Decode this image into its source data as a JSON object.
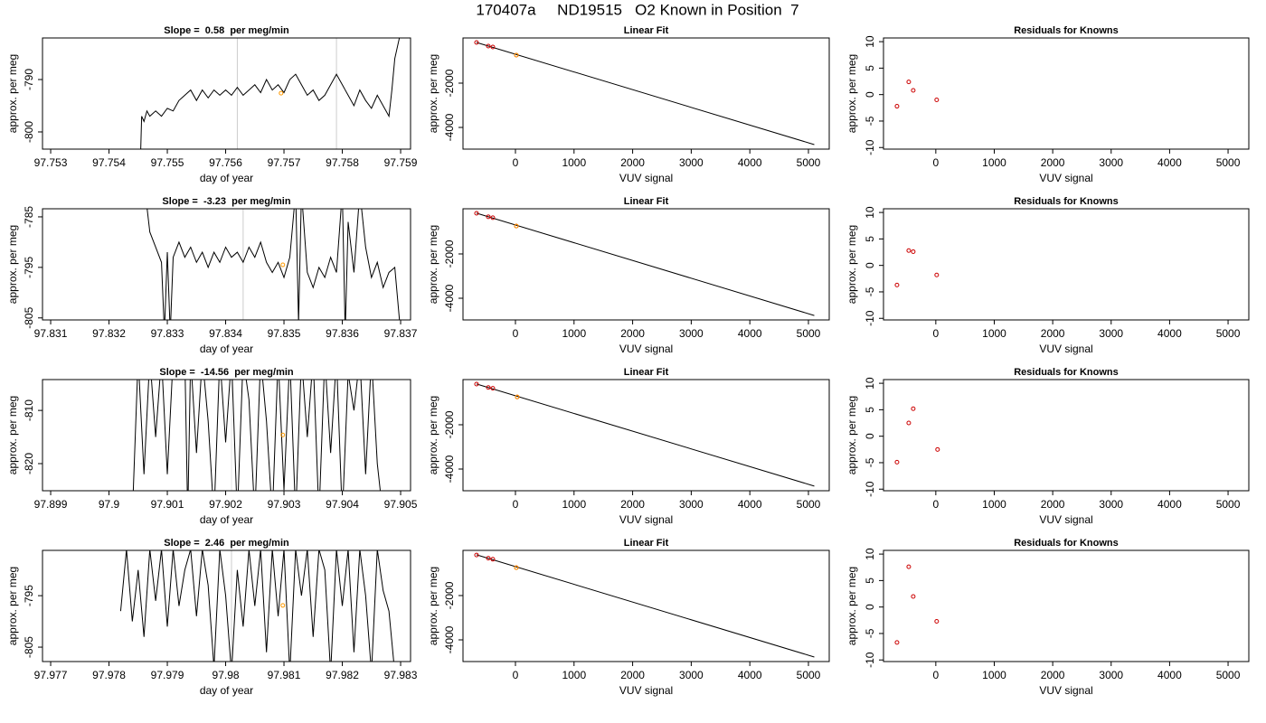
{
  "title": "170407a     ND19515   O2 Known in Position  7",
  "chart_data": [
    {
      "type": "line",
      "title": "Slope =  0.58  per meg/min",
      "x_label": "day of year",
      "y_label": "approx. per meg",
      "xlim": [
        97.75286,
        97.75917
      ],
      "ylim": [
        -803.28,
        -782.07
      ],
      "xticks": [
        97.753,
        97.754,
        97.755,
        97.756,
        97.757,
        97.758,
        97.759
      ],
      "yticks": [
        -790,
        -800
      ],
      "vlines": [
        97.7562,
        97.7579
      ],
      "vline_color": "#cccccc",
      "series": [
        {
          "mode": "line",
          "color": "#000000",
          "x": [
            97.75454,
            97.75456,
            97.7546,
            97.75465,
            97.7547,
            97.7548,
            97.7549,
            97.755,
            97.7551,
            97.7552,
            97.7553,
            97.7554,
            97.7555,
            97.7556,
            97.7557,
            97.7558,
            97.7559,
            97.756,
            97.7561,
            97.7562,
            97.7563,
            97.7564,
            97.7565,
            97.7566,
            97.7567,
            97.7568,
            97.7569,
            97.757,
            97.7571,
            97.7572,
            97.7573,
            97.7574,
            97.7575,
            97.7576,
            97.7577,
            97.7578,
            97.7579,
            97.758,
            97.7581,
            97.7582,
            97.7583,
            97.7584,
            97.7585,
            97.7586,
            97.7587,
            97.7588,
            97.75885,
            97.7589,
            97.759
          ],
          "values": [
            -805,
            -797,
            -798,
            -796,
            -797,
            -796,
            -797,
            -795.5,
            -796,
            -794,
            -793,
            -792,
            -794,
            -792,
            -793.5,
            -792,
            -793,
            -792,
            -793,
            -791.5,
            -793,
            -792,
            -791,
            -792.5,
            -790,
            -792,
            -791,
            -792.5,
            -790,
            -789,
            -791,
            -793,
            -792,
            -794,
            -793,
            -791,
            -789,
            -791,
            -793,
            -795,
            -792,
            -794,
            -795.5,
            -793,
            -795,
            -797,
            -792,
            -786,
            -781
          ]
        },
        {
          "mode": "points",
          "color": "#ff9900",
          "x": [
            97.75695
          ],
          "values": [
            -792.6
          ]
        }
      ]
    },
    {
      "type": "scatter",
      "title": "Linear Fit",
      "x_label": "VUV signal",
      "y_label": "approx. per meg",
      "xlim": [
        -895,
        5355
      ],
      "ylim": [
        -4980,
        40
      ],
      "xticks": [
        0,
        1000,
        2000,
        3000,
        4000,
        5000
      ],
      "yticks": [
        -2000,
        -4000
      ],
      "series": [
        {
          "mode": "line",
          "color": "#000000",
          "x": [
            -664,
            5100
          ],
          "values": [
            -163,
            -4776
          ]
        },
        {
          "mode": "points",
          "color": "#cc0000",
          "x": [
            -664,
            -463,
            -386,
            15
          ],
          "values": [
            -163,
            -327,
            -367,
            -735
          ]
        },
        {
          "mode": "points",
          "color": "#ff9900",
          "x": [
            15
          ],
          "values": [
            -735
          ]
        }
      ]
    },
    {
      "type": "scatter",
      "title": "Residuals for Knowns",
      "x_label": "VUV signal",
      "y_label": "approx. per meg",
      "xlim": [
        -895,
        5355
      ],
      "ylim": [
        -10.3,
        10.7
      ],
      "xticks": [
        0,
        1000,
        2000,
        3000,
        4000,
        5000
      ],
      "yticks": [
        -10,
        -5,
        0,
        5,
        10
      ],
      "series": [
        {
          "mode": "points",
          "color": "#cc0000",
          "x": [
            -664,
            -463,
            -386,
            15
          ],
          "values": [
            -2.2,
            2.4,
            0.8,
            -1.0
          ]
        }
      ]
    },
    {
      "type": "line",
      "title": "Slope =  -3.23  per meg/min",
      "x_label": "day of year",
      "y_label": "approx. per meg",
      "xlim": [
        97.83086,
        97.83717
      ],
      "ylim": [
        -805.4,
        -783.4
      ],
      "xticks": [
        97.831,
        97.832,
        97.833,
        97.834,
        97.835,
        97.836,
        97.837
      ],
      "yticks": [
        -785,
        -795,
        -805
      ],
      "vlines": [
        97.8343
      ],
      "vline_color": "#cccccc",
      "series": [
        {
          "mode": "line",
          "color": "#000000",
          "x": [
            97.83265,
            97.8327,
            97.8328,
            97.8329,
            97.83295,
            97.833,
            97.83305,
            97.8331,
            97.8332,
            97.8333,
            97.8334,
            97.8335,
            97.8336,
            97.8337,
            97.8338,
            97.8339,
            97.834,
            97.8341,
            97.8342,
            97.8343,
            97.8344,
            97.8345,
            97.8346,
            97.8347,
            97.8348,
            97.8349,
            97.835,
            97.8351,
            97.8352,
            97.83525,
            97.8353,
            97.8354,
            97.8355,
            97.8356,
            97.8357,
            97.8358,
            97.8359,
            97.836,
            97.83605,
            97.8361,
            97.8362,
            97.8363,
            97.8364,
            97.8365,
            97.8366,
            97.8367,
            97.8368,
            97.8369,
            97.837
          ],
          "values": [
            -783,
            -788,
            -791,
            -794,
            -808,
            -792,
            -808,
            -793,
            -790,
            -793,
            -791,
            -794,
            -792,
            -795,
            -792,
            -794,
            -791,
            -793,
            -792,
            -794,
            -791,
            -793,
            -790,
            -794,
            -796,
            -794,
            -797,
            -793,
            -780,
            -806,
            -780,
            -796,
            -799,
            -795,
            -797,
            -793,
            -796,
            -780,
            -808,
            -786,
            -796,
            -780,
            -791,
            -797,
            -794,
            -799,
            -796,
            -795,
            -808
          ]
        },
        {
          "mode": "points",
          "color": "#ff9900",
          "x": [
            97.83498
          ],
          "values": [
            -794.5
          ]
        }
      ]
    },
    {
      "type": "scatter",
      "title": "Linear Fit",
      "x_label": "VUV signal",
      "y_label": "approx. per meg",
      "xlim": [
        -895,
        5355
      ],
      "ylim": [
        -4980,
        40
      ],
      "xticks": [
        0,
        1000,
        2000,
        3000,
        4000,
        5000
      ],
      "yticks": [
        -2000,
        -4000
      ],
      "series": [
        {
          "mode": "line",
          "color": "#000000",
          "x": [
            -664,
            5100
          ],
          "values": [
            -160,
            -4780
          ]
        },
        {
          "mode": "points",
          "color": "#cc0000",
          "x": [
            -664,
            -463,
            -386,
            15
          ],
          "values": [
            -165,
            -320,
            -362,
            -740
          ]
        },
        {
          "mode": "points",
          "color": "#ff9900",
          "x": [
            15
          ],
          "values": [
            -740
          ]
        }
      ]
    },
    {
      "type": "scatter",
      "title": "Residuals for Knowns",
      "x_label": "VUV signal",
      "y_label": "approx. per meg",
      "xlim": [
        -895,
        5355
      ],
      "ylim": [
        -10.3,
        10.7
      ],
      "xticks": [
        0,
        1000,
        2000,
        3000,
        4000,
        5000
      ],
      "yticks": [
        -10,
        -5,
        0,
        5,
        10
      ],
      "series": [
        {
          "mode": "points",
          "color": "#cc0000",
          "x": [
            -664,
            -463,
            -386,
            15
          ],
          "values": [
            -3.7,
            2.8,
            2.6,
            -1.8
          ]
        }
      ]
    },
    {
      "type": "line",
      "title": "Slope =  -14.56  per meg/min",
      "x_label": "day of year",
      "y_label": "approx. per meg",
      "xlim": [
        97.89886,
        97.90517
      ],
      "ylim": [
        -825.1,
        -804.2
      ],
      "xticks": [
        97.899,
        97.9,
        97.901,
        97.902,
        97.903,
        97.904,
        97.905
      ],
      "yticks": [
        -810,
        -820
      ],
      "vlines": [
        97.9021
      ],
      "vline_color": "#e6e6e6",
      "series": [
        {
          "mode": "line",
          "color": "#000000",
          "x": [
            97.9004,
            97.9005,
            97.9006,
            97.9007,
            97.9008,
            97.9009,
            97.901,
            97.9011,
            97.9013,
            97.90135,
            97.9014,
            97.9015,
            97.9016,
            97.9017,
            97.9018,
            97.9019,
            97.902,
            97.9021,
            97.9022,
            97.9023,
            97.9024,
            97.9025,
            97.9026,
            97.9027,
            97.9028,
            97.9029,
            97.903,
            97.9031,
            97.9032,
            97.9033,
            97.9034,
            97.9035,
            97.9036,
            97.9037,
            97.9038,
            97.9039,
            97.904,
            97.9041,
            97.9042,
            97.9043,
            97.9044,
            97.9045,
            97.9046,
            97.9047
          ],
          "values": [
            -830,
            -800,
            -822,
            -800,
            -815,
            -800,
            -822,
            -800,
            -800,
            -830,
            -800,
            -818,
            -800,
            -812,
            -830,
            -800,
            -816,
            -800,
            -830,
            -800,
            -808,
            -830,
            -800,
            -812,
            -830,
            -800,
            -825,
            -800,
            -830,
            -800,
            -815,
            -800,
            -830,
            -800,
            -818,
            -800,
            -830,
            -803,
            -810,
            -800,
            -822,
            -800,
            -820,
            -830
          ]
        },
        {
          "mode": "points",
          "color": "#ff9900",
          "x": [
            97.90298
          ],
          "values": [
            -814.6
          ]
        }
      ]
    },
    {
      "type": "scatter",
      "title": "Linear Fit",
      "x_label": "VUV signal",
      "y_label": "approx. per meg",
      "xlim": [
        -895,
        5355
      ],
      "ylim": [
        -4980,
        40
      ],
      "xticks": [
        0,
        1000,
        2000,
        3000,
        4000,
        5000
      ],
      "yticks": [
        -2000,
        -4000
      ],
      "series": [
        {
          "mode": "line",
          "color": "#000000",
          "x": [
            -664,
            5100
          ],
          "values": [
            -160,
            -4770
          ]
        },
        {
          "mode": "points",
          "color": "#cc0000",
          "x": [
            -664,
            -463,
            -386,
            30
          ],
          "values": [
            -165,
            -318,
            -352,
            -745
          ]
        },
        {
          "mode": "points",
          "color": "#ff9900",
          "x": [
            30
          ],
          "values": [
            -745
          ]
        }
      ]
    },
    {
      "type": "scatter",
      "title": "Residuals for Knowns",
      "x_label": "VUV signal",
      "y_label": "approx. per meg",
      "xlim": [
        -895,
        5355
      ],
      "ylim": [
        -10.3,
        10.7
      ],
      "xticks": [
        0,
        1000,
        2000,
        3000,
        4000,
        5000
      ],
      "yticks": [
        -10,
        -5,
        0,
        5,
        10
      ],
      "series": [
        {
          "mode": "points",
          "color": "#cc0000",
          "x": [
            -664,
            -463,
            -386,
            30
          ],
          "values": [
            -4.9,
            2.5,
            5.2,
            -2.5
          ]
        }
      ]
    },
    {
      "type": "line",
      "title": "Slope =  2.46  per meg/min",
      "x_label": "day of year",
      "y_label": "approx. per meg",
      "xlim": [
        97.97686,
        97.98317
      ],
      "ylim": [
        -807.8,
        -786.2
      ],
      "xticks": [
        97.977,
        97.978,
        97.979,
        97.98,
        97.981,
        97.982,
        97.983
      ],
      "yticks": [
        -795,
        -805
      ],
      "vlines": [
        97.9801
      ],
      "vline_color": "#cccccc",
      "series": [
        {
          "mode": "line",
          "color": "#000000",
          "x": [
            97.9782,
            97.9783,
            97.9784,
            97.9785,
            97.9786,
            97.9787,
            97.9788,
            97.9789,
            97.979,
            97.9791,
            97.9792,
            97.9793,
            97.9794,
            97.9795,
            97.9796,
            97.9797,
            97.9798,
            97.9799,
            97.98,
            97.9801,
            97.9802,
            97.9803,
            97.9804,
            97.9805,
            97.9806,
            97.9807,
            97.9808,
            97.9809,
            97.981,
            97.9811,
            97.9812,
            97.9813,
            97.9814,
            97.9815,
            97.9816,
            97.9817,
            97.9818,
            97.9819,
            97.982,
            97.9821,
            97.9822,
            97.9823,
            97.9824,
            97.9825,
            97.9826,
            97.9827,
            97.9828,
            97.9829
          ],
          "values": [
            -798,
            -786,
            -800,
            -790,
            -803,
            -786,
            -796,
            -786,
            -801,
            -786,
            -797,
            -790,
            -786,
            -799,
            -786,
            -793,
            -809,
            -786,
            -795,
            -810,
            -790,
            -801,
            -786,
            -797,
            -786,
            -806,
            -786,
            -799,
            -786,
            -810,
            -786,
            -795,
            -786,
            -803,
            -786,
            -790,
            -810,
            -786,
            -797,
            -786,
            -806,
            -786,
            -795,
            -810,
            -786,
            -794,
            -798,
            -810
          ]
        },
        {
          "mode": "points",
          "color": "#ff9900",
          "x": [
            97.98098
          ],
          "values": [
            -796.9
          ]
        }
      ]
    },
    {
      "type": "scatter",
      "title": "Linear Fit",
      "x_label": "VUV signal",
      "y_label": "approx. per meg",
      "xlim": [
        -895,
        5355
      ],
      "ylim": [
        -4980,
        40
      ],
      "xticks": [
        0,
        1000,
        2000,
        3000,
        4000,
        5000
      ],
      "yticks": [
        -2000,
        -4000
      ],
      "series": [
        {
          "mode": "line",
          "color": "#000000",
          "x": [
            -664,
            5100
          ],
          "values": [
            -160,
            -4775
          ]
        },
        {
          "mode": "points",
          "color": "#cc0000",
          "x": [
            -664,
            -463,
            -386,
            15
          ],
          "values": [
            -168,
            -312,
            -360,
            -742
          ]
        },
        {
          "mode": "points",
          "color": "#ff9900",
          "x": [
            15
          ],
          "values": [
            -742
          ]
        }
      ]
    },
    {
      "type": "scatter",
      "title": "Residuals for Knowns",
      "x_label": "VUV signal",
      "y_label": "approx. per meg",
      "xlim": [
        -895,
        5355
      ],
      "ylim": [
        -10.3,
        10.7
      ],
      "xticks": [
        0,
        1000,
        2000,
        3000,
        4000,
        5000
      ],
      "yticks": [
        -10,
        -5,
        0,
        5,
        10
      ],
      "series": [
        {
          "mode": "points",
          "color": "#cc0000",
          "x": [
            -664,
            -463,
            -386,
            15
          ],
          "values": [
            -6.7,
            7.6,
            2.0,
            -2.7
          ]
        }
      ]
    }
  ]
}
